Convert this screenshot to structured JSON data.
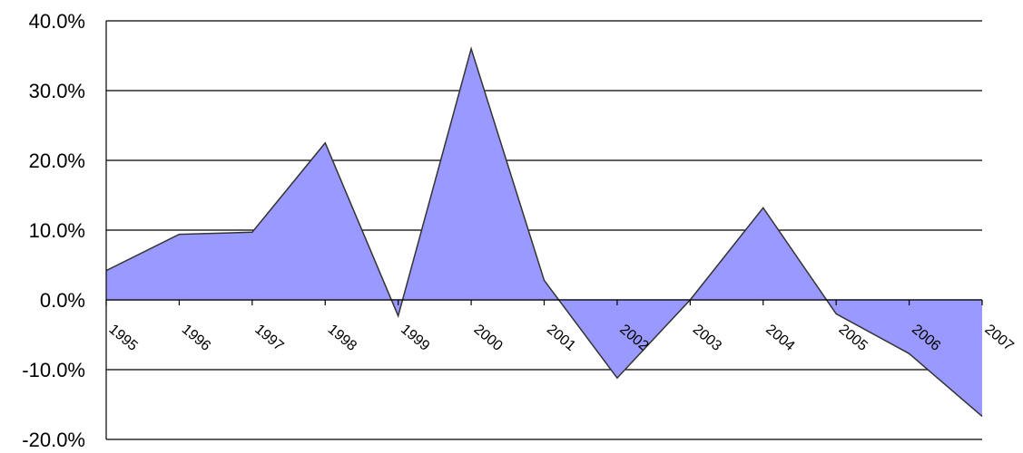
{
  "chart_data": {
    "type": "area",
    "title": "",
    "xlabel": "",
    "ylabel": "",
    "categories": [
      "1995",
      "1996",
      "1997",
      "1998",
      "1999",
      "2000",
      "2001",
      "2002",
      "2003",
      "2004",
      "2005",
      "2006",
      "2007"
    ],
    "values": [
      4.2,
      9.4,
      9.7,
      22.5,
      -2.3,
      36.0,
      2.8,
      -11.2,
      0.0,
      13.2,
      -2.0,
      -7.7,
      -16.7
    ],
    "y_ticks": [
      "40.0%",
      "30.0%",
      "20.0%",
      "10.0%",
      "0.0%",
      "-10.0%",
      "-20.0%"
    ],
    "y_tick_values": [
      40,
      30,
      20,
      10,
      0,
      -10,
      -20
    ],
    "ylim": [
      -20,
      40
    ],
    "grid": true,
    "legend": "none",
    "colors": {
      "fill": "#9999FF",
      "stroke": "#333333"
    }
  }
}
